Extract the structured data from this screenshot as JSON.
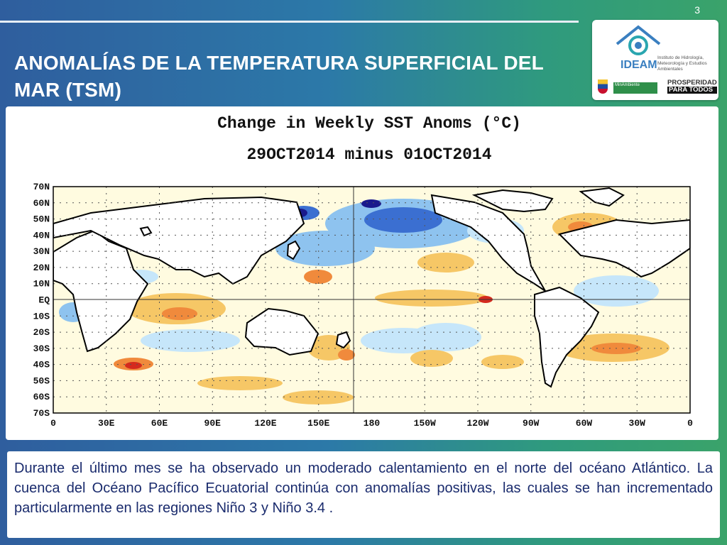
{
  "slide": {
    "number": "3",
    "title": "ANOMALÍAS DE LA TEMPERATURA SUPERFICIAL DEL MAR (TSM)"
  },
  "logo": {
    "name": "IDEAM",
    "institute": "Instituto de Hidrología, Meteorología y Estudios Ambientales",
    "ministry": "MinAmbiente",
    "slogan_1": "PROSPERIDAD",
    "slogan_2": "PARA TODOS"
  },
  "map": {
    "title": "Change in Weekly SST Anoms (°C)",
    "subtitle": "29OCT2014 minus 01OCT2014",
    "lat_labels": [
      "70N",
      "60N",
      "50N",
      "40N",
      "30N",
      "20N",
      "10N",
      "EQ",
      "10S",
      "20S",
      "30S",
      "40S",
      "50S",
      "60S",
      "70S"
    ],
    "lon_labels": [
      "0",
      "30E",
      "60E",
      "90E",
      "120E",
      "150E",
      "180",
      "150W",
      "120W",
      "90W",
      "60W",
      "30W",
      "0"
    ],
    "colors": {
      "strong_cold": "#1a1a8c",
      "cold": "#3b6fd1",
      "cool": "#8ec3ef",
      "slight_cool": "#c6e6fa",
      "neutral": "#ffffff",
      "slight_warm": "#fff4b0",
      "warm": "#f6c766",
      "hot": "#f08a3c",
      "very_hot": "#d42a1e"
    }
  },
  "caption": "Durante el último mes se ha observado un moderado calentamiento en el norte del océano Atlántico. La cuenca del Océano Pacífico Ecuatorial continúa con anomalías positivas, las cuales se han incrementado particularmente en las regiones Niño 3 y Niño 3.4 ."
}
